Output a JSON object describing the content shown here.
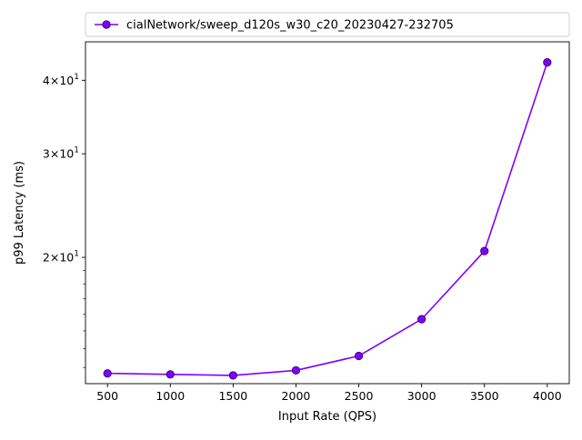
{
  "chart_data": {
    "type": "line",
    "title": "",
    "xlabel": "Input Rate (QPS)",
    "ylabel": "p99 Latency (ms)",
    "y_scale": "log",
    "xlim": [
      325,
      4175
    ],
    "ylim": [
      12.2,
      46.5
    ],
    "x_ticks": [
      500,
      1000,
      1500,
      2000,
      2500,
      3000,
      3500,
      4000
    ],
    "x_tick_labels": [
      "500",
      "1000",
      "1500",
      "2000",
      "2500",
      "3000",
      "3500",
      "4000"
    ],
    "y_major_ticks": [
      20,
      30,
      40
    ],
    "y_tick_labels": [
      {
        "base": "2×10",
        "exp": "1"
      },
      {
        "base": "3×10",
        "exp": "1"
      },
      {
        "base": "4×10",
        "exp": "1"
      }
    ],
    "y_minor_ticks": [
      13,
      14,
      15,
      16,
      17,
      18,
      19,
      50
    ],
    "grid": false,
    "legend_position": "top, above plot",
    "series": [
      {
        "name": "cialNetwork/sweep_d120s_w30_c20_20230427-232705",
        "color": "#7f00ff",
        "marker_color": "#7f00ff",
        "x": [
          500,
          1000,
          1500,
          2000,
          2500,
          3000,
          3500,
          4000
        ],
        "y": [
          12.7,
          12.65,
          12.6,
          12.85,
          13.6,
          15.7,
          20.5,
          42.9
        ]
      }
    ]
  }
}
